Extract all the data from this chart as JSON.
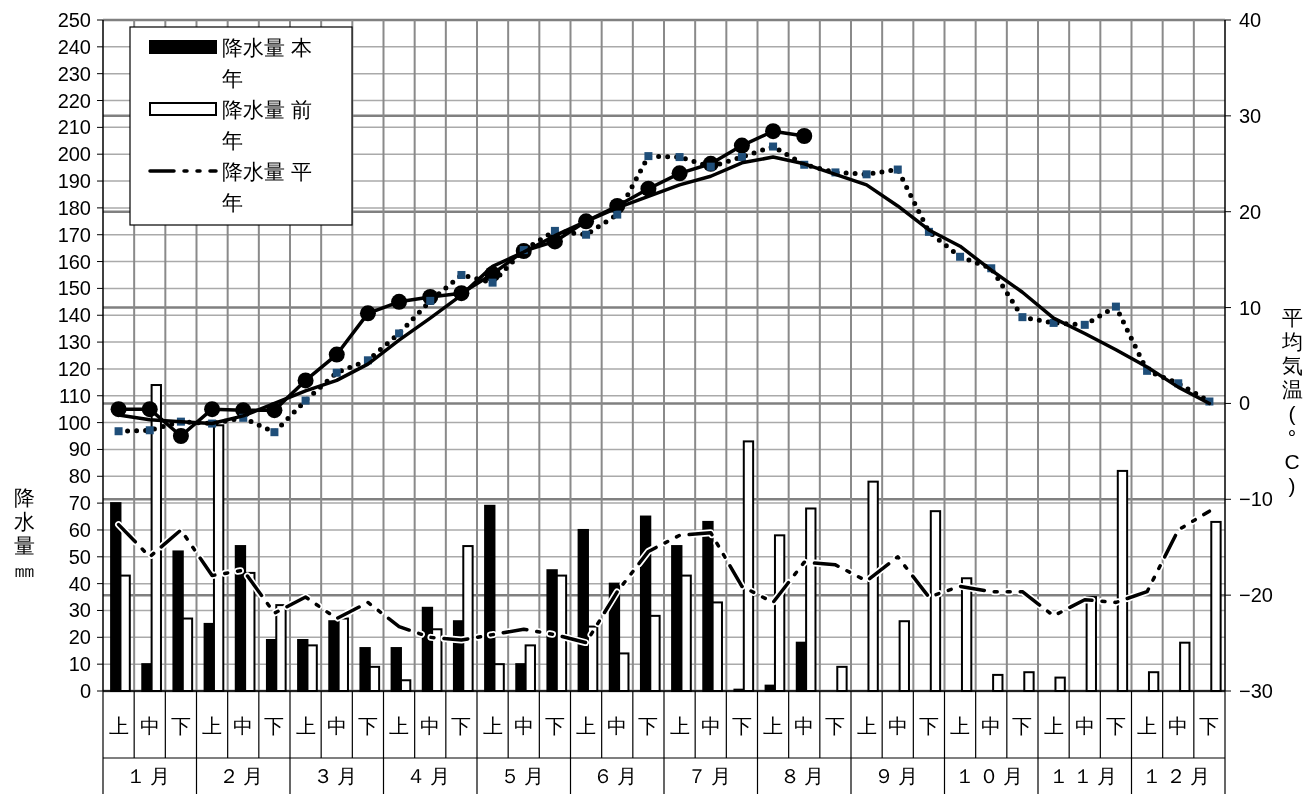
{
  "chart_data": {
    "type": "bar",
    "ylabel": "降水量㎜",
    "y2label": "平均気温(°C)",
    "categories": [
      "上",
      "中",
      "下",
      "上",
      "中",
      "下",
      "上",
      "中",
      "下",
      "上",
      "中",
      "下",
      "上",
      "中",
      "下",
      "上",
      "中",
      "下",
      "上",
      "中",
      "下",
      "上",
      "中",
      "下",
      "上",
      "中",
      "下",
      "上",
      "中",
      "下",
      "上",
      "中",
      "下",
      "上",
      "中",
      "下"
    ],
    "annotations": [
      "１月",
      "２月",
      "３月",
      "４月",
      "５月",
      "６月",
      "７月",
      "８月",
      "９月",
      "１０月",
      "１１月",
      "１２月"
    ],
    "ylim": [
      0,
      250
    ],
    "yticks": [
      0,
      10,
      20,
      30,
      40,
      50,
      60,
      70,
      80,
      90,
      100,
      110,
      120,
      130,
      140,
      150,
      160,
      170,
      180,
      190,
      200,
      210,
      220,
      230,
      240,
      250
    ],
    "y2lim": [
      -30,
      40
    ],
    "y2ticks": [
      -30,
      -20,
      -10,
      0,
      10,
      20,
      30,
      40
    ],
    "grid": true,
    "legend": "top left",
    "series": [
      {
        "name": "降水量 本年",
        "type": "bar",
        "color": "#000000",
        "values": [
          70,
          10,
          52,
          25,
          54,
          19,
          19,
          26,
          16,
          16,
          31,
          26,
          69,
          10,
          45,
          60,
          40,
          65,
          54,
          63,
          0.5,
          2,
          18,
          null,
          null,
          null,
          null,
          null,
          null,
          null,
          null,
          null,
          null,
          null,
          null,
          null
        ]
      },
      {
        "name": "降水量 前年",
        "type": "bar",
        "color": "#ffffff",
        "values": [
          43,
          114,
          27,
          99,
          44,
          32,
          17,
          27,
          9,
          4,
          23,
          54,
          10,
          17,
          43,
          24,
          14,
          28,
          43,
          33,
          93,
          58,
          68,
          9,
          78,
          26,
          67,
          42,
          6,
          7,
          5,
          35,
          82,
          7,
          18,
          63
        ]
      },
      {
        "name": "降水量 平年",
        "type": "line",
        "color": "#000000",
        "line_style": "dashed",
        "marker": "none",
        "values": [
          62,
          50,
          60,
          43,
          45,
          29,
          35,
          27,
          33,
          24,
          20,
          19,
          21,
          23,
          21,
          18,
          37,
          52,
          58,
          59,
          39,
          33,
          48,
          47,
          41,
          50,
          35,
          39,
          37,
          37,
          28,
          34,
          33,
          37,
          60,
          67
        ]
      },
      {
        "type": "line",
        "axis": "y2",
        "color": "#000000",
        "line_style": "solid",
        "marker": "circle",
        "values": [
          -0.6,
          -0.6,
          -3.4,
          -0.6,
          -0.7,
          -0.7,
          2.4,
          5.1,
          9.4,
          10.6,
          11.1,
          11.5,
          13.5,
          15.9,
          16.9,
          19.0,
          20.6,
          22.4,
          24.0,
          25.0,
          26.9,
          28.4,
          27.9,
          null,
          null,
          null,
          null,
          null,
          null,
          null,
          null,
          null,
          null,
          null,
          null,
          null
        ]
      },
      {
        "type": "line",
        "axis": "y2",
        "color": "#000000",
        "line_style": "dotted",
        "marker": "square",
        "values": [
          -2.9,
          -2.8,
          -1.9,
          -2.1,
          -1.5,
          -3.0,
          0.3,
          3.2,
          4.5,
          7.3,
          10.7,
          13.4,
          12.6,
          16.0,
          18.0,
          17.6,
          19.7,
          25.8,
          25.7,
          24.7,
          25.7,
          26.8,
          24.9,
          24.1,
          23.9,
          24.4,
          17.9,
          15.3,
          14.1,
          9.0,
          8.4,
          8.2,
          10.1,
          3.4,
          2.1,
          0.2
        ]
      },
      {
        "type": "line",
        "axis": "y2",
        "color": "#000000",
        "line_style": "solid",
        "marker": "none",
        "values": [
          -1.2,
          -1.7,
          -1.9,
          -2.1,
          -1.3,
          0.0,
          1.3,
          2.4,
          4.1,
          6.6,
          8.9,
          11.3,
          14.3,
          15.8,
          17.5,
          19.0,
          20.4,
          21.6,
          22.8,
          23.7,
          25.1,
          25.7,
          25.0,
          23.9,
          22.8,
          20.6,
          18.1,
          16.4,
          13.9,
          11.6,
          8.9,
          7.3,
          5.6,
          3.8,
          1.7,
          0.0
        ]
      }
    ]
  }
}
